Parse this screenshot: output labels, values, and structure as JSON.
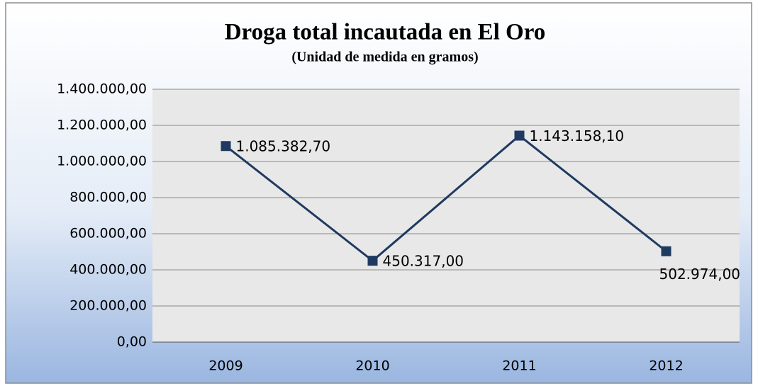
{
  "chart_data": {
    "type": "line",
    "title": "Droga total incautada en El Oro",
    "subtitle": "(Unidad de medida en gramos)",
    "categories": [
      "2009",
      "2010",
      "2011",
      "2012"
    ],
    "series": [
      {
        "name": "Droga total incautada",
        "color": "#1f3a60",
        "values": [
          1085382.7,
          450317,
          1143158.1,
          502974
        ],
        "value_labels": [
          "1.085.382,70",
          "450.317,00",
          "1.143.158,10",
          "502.974,00"
        ]
      }
    ],
    "ylim": [
      0,
      1400000
    ],
    "yticks": [
      {
        "value": 0,
        "label": "0,00"
      },
      {
        "value": 200000,
        "label": "200.000,00"
      },
      {
        "value": 400000,
        "label": "400.000,00"
      },
      {
        "value": 600000,
        "label": "600.000,00"
      },
      {
        "value": 800000,
        "label": "800.000,00"
      },
      {
        "value": 1000000,
        "label": "1.000.000,00"
      },
      {
        "value": 1200000,
        "label": "1.200.000,00"
      },
      {
        "value": 1400000,
        "label": "1.400.000,00"
      }
    ],
    "grid": true
  }
}
